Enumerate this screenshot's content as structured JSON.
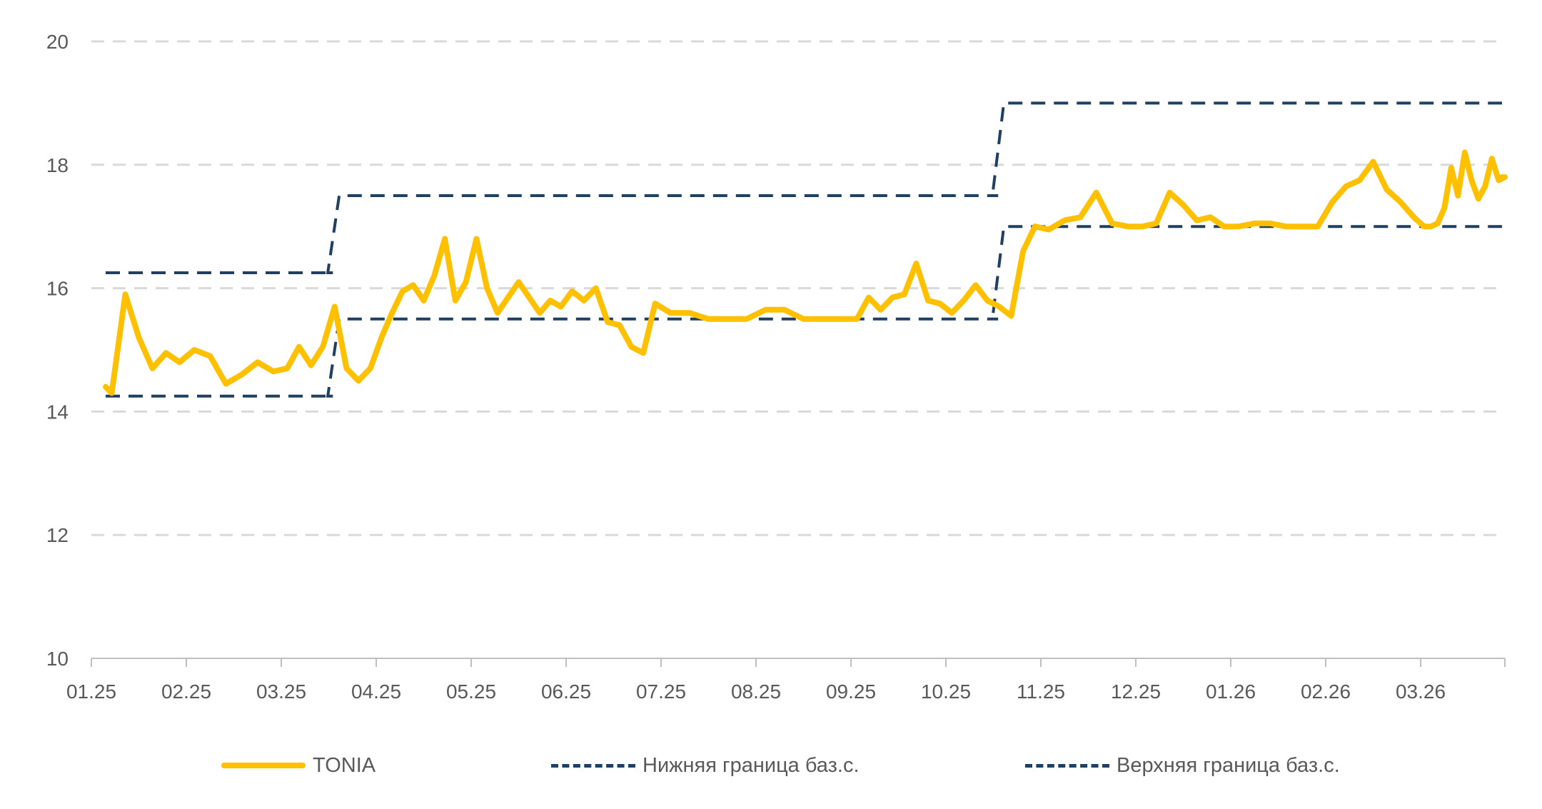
{
  "chart_data": {
    "type": "line",
    "title": "",
    "xlabel": "",
    "ylabel": "",
    "ylim": [
      10,
      20
    ],
    "yticks": [
      "10",
      "12",
      "14",
      "16",
      "18",
      "20"
    ],
    "xticks": [
      "01.25",
      "02.25",
      "03.25",
      "04.25",
      "05.25",
      "06.25",
      "07.25",
      "08.25",
      "09.25",
      "10.25",
      "11.25",
      "12.25",
      "01.26",
      "02.26",
      "03.26"
    ],
    "grid": "horizontal dashed",
    "legend_position": "bottom",
    "colors": {
      "tonia": "#FFC000",
      "lower": "#1F3F63",
      "upper": "#1F3F63",
      "grid": "#D9D9D9",
      "axis": "#BFBFBF"
    },
    "series": [
      {
        "name": "TONIA",
        "style": "solid",
        "points": [
          [
            "01.25",
            14.4
          ],
          [
            "01.25",
            14.3
          ],
          [
            "01.25",
            15.9
          ],
          [
            "01.25",
            15.2
          ],
          [
            "01.25",
            14.7
          ],
          [
            "01.25",
            14.95
          ],
          [
            "01.25",
            14.8
          ],
          [
            "02.25",
            15.0
          ],
          [
            "02.25",
            14.9
          ],
          [
            "02.25",
            14.45
          ],
          [
            "02.25",
            14.6
          ],
          [
            "02.25",
            14.8
          ],
          [
            "02.25",
            14.65
          ],
          [
            "03.25",
            14.7
          ],
          [
            "03.25",
            15.05
          ],
          [
            "03.25",
            14.75
          ],
          [
            "03.25",
            15.05
          ],
          [
            "03.25",
            15.7
          ],
          [
            "03.25",
            14.7
          ],
          [
            "03.25",
            14.5
          ],
          [
            "03.25",
            14.7
          ],
          [
            "04.25",
            15.2
          ],
          [
            "04.25",
            15.6
          ],
          [
            "04.25",
            15.95
          ],
          [
            "04.25",
            16.05
          ],
          [
            "04.25",
            15.8
          ],
          [
            "04.25",
            16.2
          ],
          [
            "04.25",
            16.8
          ],
          [
            "04.25",
            15.8
          ],
          [
            "04.25",
            16.1
          ],
          [
            "05.25",
            16.8
          ],
          [
            "05.25",
            16.0
          ],
          [
            "05.25",
            15.6
          ],
          [
            "05.25",
            15.85
          ],
          [
            "05.25",
            16.1
          ],
          [
            "05.25",
            15.85
          ],
          [
            "05.25",
            15.6
          ],
          [
            "05.25",
            15.8
          ],
          [
            "05.25",
            15.7
          ],
          [
            "06.25",
            15.95
          ],
          [
            "06.25",
            15.8
          ],
          [
            "06.25",
            16.0
          ],
          [
            "06.25",
            15.45
          ],
          [
            "06.25",
            15.4
          ],
          [
            "06.25",
            15.05
          ],
          [
            "06.25",
            14.95
          ],
          [
            "06.25",
            15.75
          ],
          [
            "07.25",
            15.6
          ],
          [
            "07.25",
            15.6
          ],
          [
            "07.25",
            15.5
          ],
          [
            "07.25",
            15.5
          ],
          [
            "07.25",
            15.5
          ],
          [
            "08.25",
            15.65
          ],
          [
            "08.25",
            15.65
          ],
          [
            "08.25",
            15.5
          ],
          [
            "08.25",
            15.5
          ],
          [
            "08.25",
            15.5
          ],
          [
            "09.25",
            15.5
          ],
          [
            "09.25",
            15.85
          ],
          [
            "09.25",
            15.65
          ],
          [
            "09.25",
            15.85
          ],
          [
            "09.25",
            15.9
          ],
          [
            "09.25",
            16.4
          ],
          [
            "09.25",
            15.8
          ],
          [
            "09.25",
            15.75
          ],
          [
            "10.25",
            15.6
          ],
          [
            "10.25",
            15.8
          ],
          [
            "10.25",
            16.05
          ],
          [
            "10.25",
            15.8
          ],
          [
            "10.25",
            15.7
          ],
          [
            "10.25",
            15.55
          ],
          [
            "10.25",
            16.6
          ],
          [
            "10.25",
            17.0
          ],
          [
            "11.25",
            16.95
          ],
          [
            "11.25",
            17.1
          ],
          [
            "11.25",
            17.15
          ],
          [
            "11.25",
            17.55
          ],
          [
            "11.25",
            17.05
          ],
          [
            "11.25",
            17.0
          ],
          [
            "12.25",
            17.0
          ],
          [
            "12.25",
            17.05
          ],
          [
            "12.25",
            17.55
          ],
          [
            "12.25",
            17.35
          ],
          [
            "12.25",
            17.1
          ],
          [
            "12.25",
            17.15
          ],
          [
            "12.25",
            17.0
          ],
          [
            "01.26",
            17.0
          ],
          [
            "01.26",
            17.05
          ],
          [
            "01.26",
            17.05
          ],
          [
            "01.26",
            17.0
          ],
          [
            "01.26",
            17.0
          ],
          [
            "01.26",
            17.0
          ],
          [
            "02.26",
            17.4
          ],
          [
            "02.26",
            17.65
          ],
          [
            "02.26",
            17.75
          ],
          [
            "02.26",
            18.05
          ],
          [
            "02.26",
            17.6
          ],
          [
            "02.26",
            17.4
          ],
          [
            "02.26",
            17.15
          ],
          [
            "03.26",
            17.0
          ],
          [
            "03.26",
            17.0
          ],
          [
            "03.26",
            17.05
          ],
          [
            "03.26",
            17.3
          ],
          [
            "03.26",
            17.95
          ],
          [
            "03.26",
            17.5
          ],
          [
            "03.26",
            18.2
          ],
          [
            "03.26",
            17.75
          ],
          [
            "03.26",
            17.45
          ],
          [
            "03.26",
            17.65
          ],
          [
            "03.26",
            18.1
          ],
          [
            "03.26",
            17.75
          ],
          [
            "03.26",
            17.8
          ],
          [
            "03.26",
            17.8
          ]
        ]
      },
      {
        "name": "Нижняя граница баз.с.",
        "style": "dashed",
        "steps": [
          {
            "from": "01.25",
            "to": "03.25",
            "value": 14.25
          },
          {
            "from": "03.25",
            "to": "10.25",
            "value": 15.5
          },
          {
            "from": "10.25",
            "to": "03.26",
            "value": 17.0
          }
        ]
      },
      {
        "name": "Верхняя граница баз.с.",
        "style": "dashed",
        "steps": [
          {
            "from": "01.25",
            "to": "03.25",
            "value": 16.25
          },
          {
            "from": "03.25",
            "to": "10.25",
            "value": 17.5
          },
          {
            "from": "10.25",
            "to": "03.26",
            "value": 19.0
          }
        ]
      }
    ]
  }
}
